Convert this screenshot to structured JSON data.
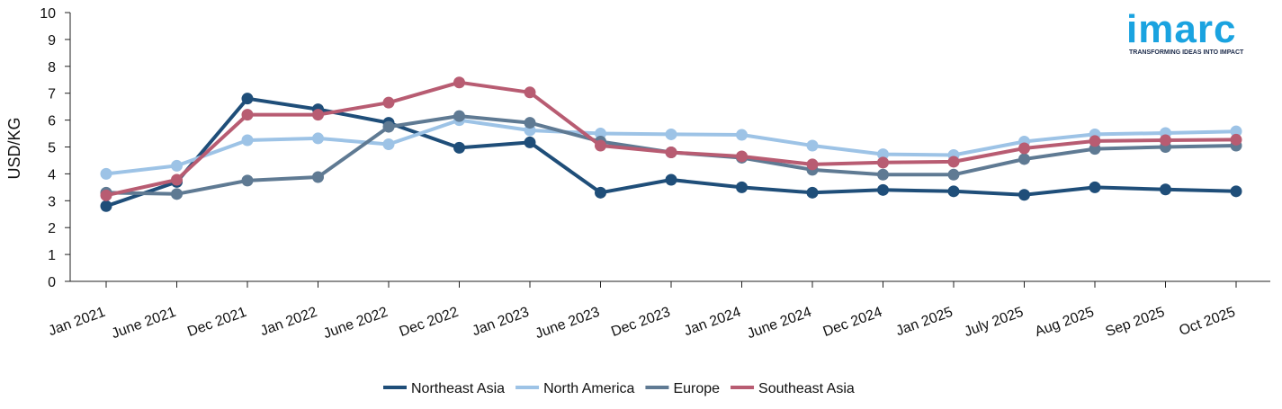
{
  "logo": {
    "word": "imarc",
    "tagline": "TRANSFORMING IDEAS INTO IMPACT",
    "color": "#1aa3e0"
  },
  "chart_data": {
    "type": "line",
    "title": "",
    "xlabel": "",
    "ylabel": "USD/KG",
    "ylim": [
      0,
      10
    ],
    "yticks": [
      0,
      1,
      2,
      3,
      4,
      5,
      6,
      7,
      8,
      9,
      10
    ],
    "grid": false,
    "legend_position": "bottom",
    "categories": [
      "Jan 2021",
      "June 2021",
      "Dec 2021",
      "Jan 2022",
      "June 2022",
      "Dec 2022",
      "Jan 2023",
      "June 2023",
      "Dec 2023",
      "Jan 2024",
      "June 2024",
      "Dec 2024",
      "Jan 2025",
      "July 2025",
      "Aug 2025",
      "Sep 2025",
      "Oct 2025"
    ],
    "series": [
      {
        "name": "Northeast Asia",
        "color": "#1f4e79",
        "values": [
          2.8,
          3.7,
          6.8,
          6.4,
          5.9,
          4.97,
          5.17,
          3.3,
          3.78,
          3.5,
          3.3,
          3.4,
          3.35,
          3.22,
          3.5,
          3.42,
          3.35
        ]
      },
      {
        "name": "North America",
        "color": "#9dc3e6",
        "values": [
          4.0,
          4.3,
          5.25,
          5.32,
          5.1,
          6.0,
          5.62,
          5.5,
          5.47,
          5.45,
          5.05,
          4.73,
          4.7,
          5.2,
          5.47,
          5.52,
          5.58
        ]
      },
      {
        "name": "Europe",
        "color": "#5f7a93",
        "values": [
          3.3,
          3.25,
          3.75,
          3.88,
          5.75,
          6.15,
          5.9,
          5.2,
          4.8,
          4.6,
          4.15,
          3.97,
          3.97,
          4.55,
          4.93,
          5.0,
          5.05
        ]
      },
      {
        "name": "Southeast Asia",
        "color": "#b85c72",
        "values": [
          3.2,
          3.78,
          6.2,
          6.2,
          6.65,
          7.4,
          7.03,
          5.05,
          4.8,
          4.65,
          4.35,
          4.42,
          4.45,
          4.95,
          5.22,
          5.25,
          5.27
        ]
      }
    ]
  }
}
